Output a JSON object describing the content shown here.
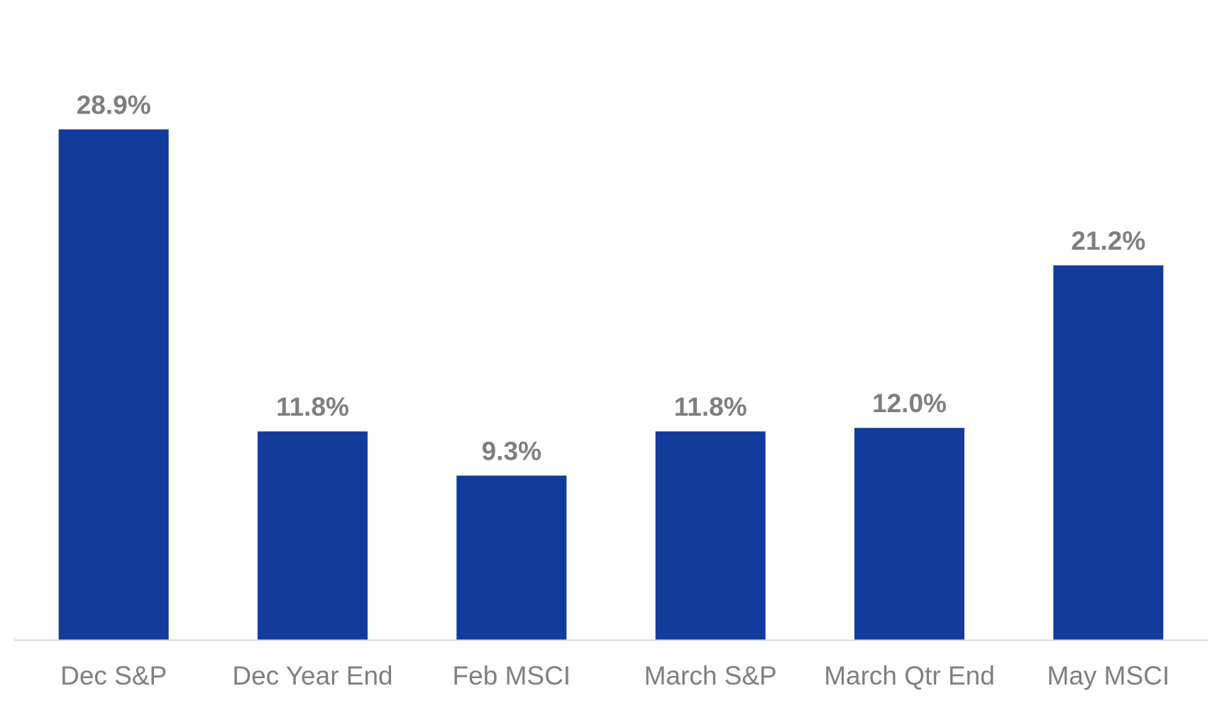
{
  "chart_data": {
    "type": "bar",
    "title": "",
    "xlabel": "",
    "ylabel": "",
    "categories": [
      "Dec S&P",
      "Dec Year End",
      "Feb MSCI",
      "March S&P",
      "March Qtr End",
      "May MSCI"
    ],
    "values": [
      28.9,
      11.8,
      9.3,
      11.8,
      12.0,
      21.2
    ],
    "value_labels": [
      "28.9%",
      "11.8%",
      "9.3%",
      "11.8%",
      "12.0%",
      "21.2%"
    ],
    "ylim": [
      0,
      32
    ],
    "grid": false,
    "legend": "none",
    "colors": {
      "bar": "#123B9C",
      "value_label": "#7F7F7F",
      "category_label": "#7F7F7F",
      "baseline": "#D9D9D9"
    }
  }
}
